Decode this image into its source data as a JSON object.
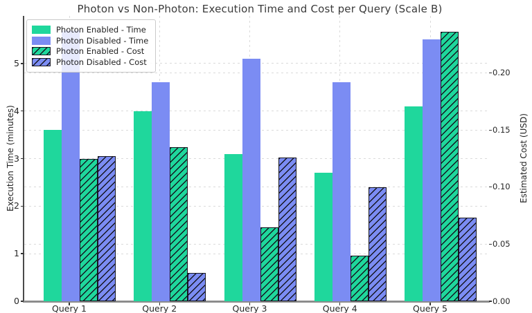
{
  "title": "Photon vs Non-Photon: Execution Time and Cost per Query (Scale B)",
  "chart_data": {
    "type": "bar",
    "categories": [
      "Query 1",
      "Query 2",
      "Query 3",
      "Query 4",
      "Query 5"
    ],
    "series": [
      {
        "name": "Photon Enabled - Time",
        "axis": "left",
        "style": "solid",
        "color": "#1fd79c",
        "values": [
          3.6,
          4.0,
          3.1,
          2.7,
          4.1
        ]
      },
      {
        "name": "Photon Disabled - Time",
        "axis": "left",
        "style": "solid",
        "color": "#7b8cf3",
        "values": [
          5.7,
          4.6,
          5.1,
          4.6,
          5.5
        ]
      },
      {
        "name": "Photon Enabled - Cost",
        "axis": "right",
        "style": "hatched",
        "color": "#1fd79c",
        "values": [
          0.125,
          0.135,
          0.065,
          0.04,
          0.236
        ]
      },
      {
        "name": "Photon Disabled - Cost",
        "axis": "right",
        "style": "hatched",
        "color": "#7b8cf3",
        "values": [
          0.127,
          0.025,
          0.126,
          0.1,
          0.073
        ]
      }
    ],
    "ylabel_left": "Execution Time (minutes)",
    "ylabel_right": "Estimated Cost (USD)",
    "ylim_left": [
      0,
      6
    ],
    "ylim_right": [
      0,
      0.25
    ],
    "yticks_left": [
      "0",
      "1",
      "2",
      "3",
      "4",
      "5"
    ],
    "yticks_right": [
      "0.00",
      "0.05",
      "0.10",
      "0.15",
      "0.20"
    ],
    "grid": true,
    "legend_position": "upper-left",
    "hatch_color": "#15151f",
    "colors": {
      "grid": "#dadada",
      "spine_left": "#4a4a4a",
      "spine_bottom": "#8c8c8c",
      "text": "#262626"
    }
  }
}
